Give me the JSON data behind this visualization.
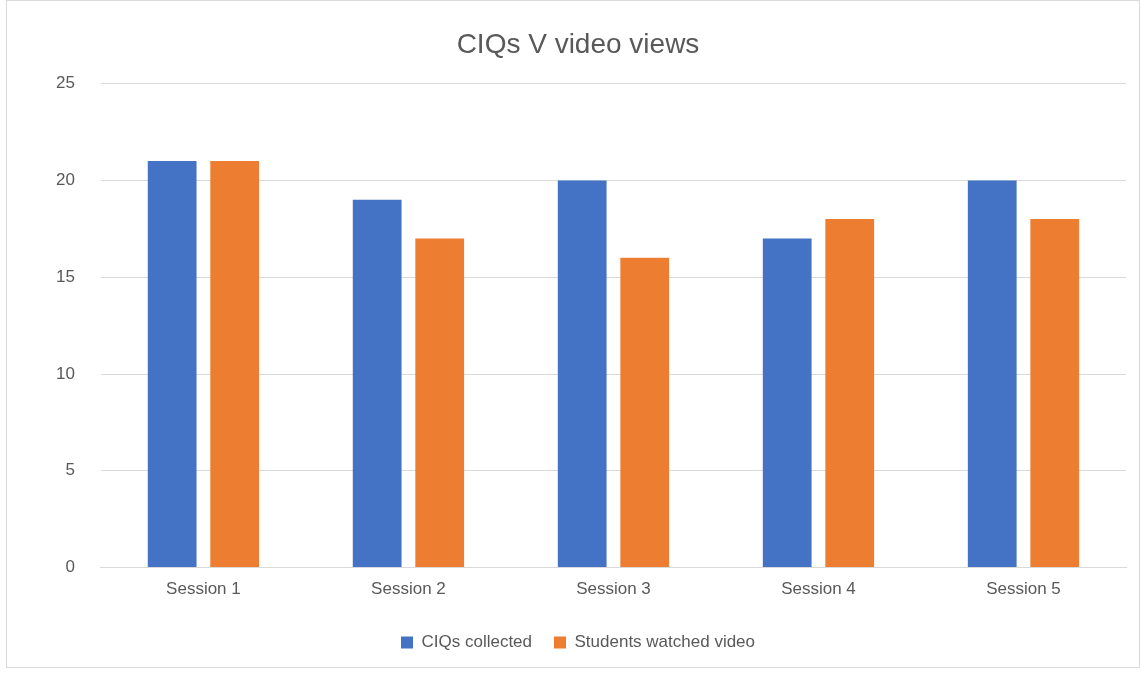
{
  "chart_data": {
    "type": "bar",
    "title": "CIQs V video views",
    "categories": [
      "Session 1",
      "Session 2",
      "Session 3",
      "Session 4",
      "Session 5"
    ],
    "series": [
      {
        "name": "CIQs collected",
        "color": "#4472c4",
        "values": [
          21,
          19,
          20,
          17,
          20
        ]
      },
      {
        "name": "Students watched video",
        "color": "#ed7d31",
        "values": [
          21,
          17,
          16,
          18,
          18
        ]
      }
    ],
    "ylim": [
      0,
      25
    ],
    "yticks": [
      0,
      5,
      10,
      15,
      20,
      25
    ],
    "grid": "y",
    "legend": "bottom"
  }
}
